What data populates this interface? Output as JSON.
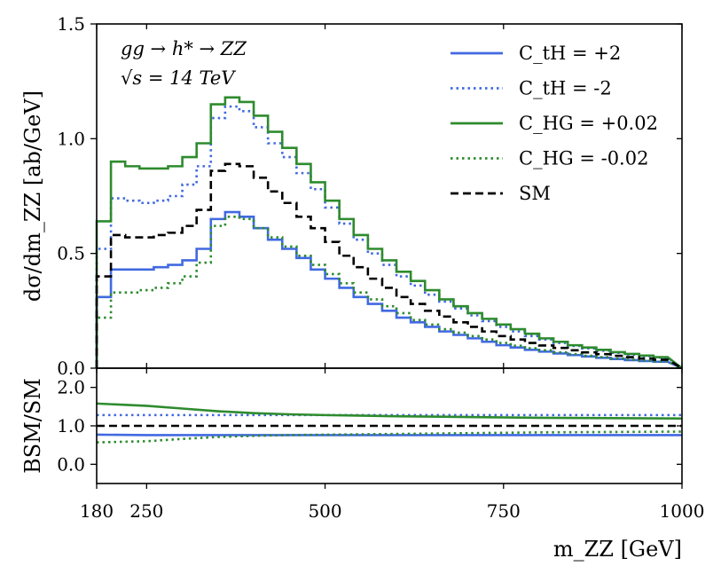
{
  "chart_data": [
    {
      "type": "line",
      "step": true,
      "panel": "main",
      "xlabel": "m_ZZ [GeV]",
      "ylabel": "dσ/dm_ZZ [ab/GeV]",
      "xlim": [
        180,
        1000
      ],
      "ylim": [
        0.0,
        1.5
      ],
      "xticks": [
        180,
        250,
        500,
        750,
        1000
      ],
      "yticks": [
        "0.0",
        "0.5",
        "1.0",
        "1.5"
      ],
      "annotations": [
        "gg → h* → ZZ",
        "√s = 14 TeV"
      ],
      "legend_position": "top-right",
      "bin_edges": [
        180,
        200,
        220,
        240,
        260,
        280,
        300,
        320,
        340,
        360,
        380,
        400,
        420,
        440,
        460,
        480,
        500,
        520,
        540,
        560,
        580,
        600,
        620,
        640,
        660,
        680,
        700,
        720,
        740,
        760,
        780,
        800,
        820,
        840,
        860,
        880,
        900,
        920,
        940,
        960,
        980,
        1000
      ],
      "series": [
        {
          "name": "C_tH = +2",
          "color": "#4169E1",
          "style": "solid",
          "values": [
            0.31,
            0.43,
            0.43,
            0.43,
            0.44,
            0.45,
            0.47,
            0.52,
            0.65,
            0.68,
            0.66,
            0.61,
            0.56,
            0.52,
            0.48,
            0.43,
            0.39,
            0.35,
            0.31,
            0.28,
            0.25,
            0.22,
            0.2,
            0.18,
            0.16,
            0.145,
            0.13,
            0.115,
            0.1,
            0.09,
            0.08,
            0.072,
            0.064,
            0.057,
            0.051,
            0.045,
            0.04,
            0.035,
            0.031,
            0.028
          ]
        },
        {
          "name": "C_tH = -2",
          "color": "#4169E1",
          "style": "dotted",
          "values": [
            0.52,
            0.74,
            0.73,
            0.72,
            0.73,
            0.75,
            0.8,
            0.88,
            1.09,
            1.14,
            1.12,
            1.05,
            0.98,
            0.92,
            0.85,
            0.78,
            0.7,
            0.63,
            0.56,
            0.5,
            0.45,
            0.4,
            0.36,
            0.32,
            0.29,
            0.26,
            0.23,
            0.205,
            0.18,
            0.16,
            0.14,
            0.125,
            0.11,
            0.097,
            0.086,
            0.076,
            0.067,
            0.059,
            0.052,
            0.046
          ]
        },
        {
          "name": "C_HG = +0.02",
          "color": "#2E8B2E",
          "style": "solid",
          "values": [
            0.64,
            0.9,
            0.88,
            0.87,
            0.87,
            0.88,
            0.92,
            0.98,
            1.15,
            1.18,
            1.16,
            1.1,
            1.03,
            0.96,
            0.89,
            0.81,
            0.73,
            0.65,
            0.58,
            0.52,
            0.47,
            0.42,
            0.38,
            0.34,
            0.3,
            0.27,
            0.24,
            0.215,
            0.19,
            0.17,
            0.15,
            0.13,
            0.115,
            0.1,
            0.09,
            0.08,
            0.07,
            0.062,
            0.055,
            0.048
          ]
        },
        {
          "name": "C_HG = -0.02",
          "color": "#2E8B2E",
          "style": "dotted",
          "values": [
            0.22,
            0.33,
            0.33,
            0.34,
            0.35,
            0.37,
            0.4,
            0.46,
            0.62,
            0.66,
            0.65,
            0.61,
            0.57,
            0.53,
            0.49,
            0.45,
            0.41,
            0.37,
            0.33,
            0.3,
            0.27,
            0.24,
            0.21,
            0.19,
            0.17,
            0.155,
            0.14,
            0.125,
            0.11,
            0.098,
            0.087,
            0.078,
            0.069,
            0.061,
            0.054,
            0.048,
            0.042,
            0.037,
            0.033,
            0.029
          ]
        },
        {
          "name": "SM",
          "color": "#000000",
          "style": "dashed",
          "values": [
            0.4,
            0.58,
            0.57,
            0.57,
            0.58,
            0.59,
            0.62,
            0.69,
            0.86,
            0.89,
            0.88,
            0.83,
            0.77,
            0.72,
            0.66,
            0.61,
            0.55,
            0.49,
            0.44,
            0.39,
            0.35,
            0.31,
            0.28,
            0.25,
            0.225,
            0.2,
            0.18,
            0.16,
            0.14,
            0.125,
            0.11,
            0.099,
            0.088,
            0.078,
            0.069,
            0.061,
            0.054,
            0.048,
            0.042,
            0.037
          ]
        }
      ]
    },
    {
      "type": "line",
      "panel": "ratio",
      "ylabel": "BSM/SM",
      "xlim": [
        180,
        1000
      ],
      "ylim": [
        -0.5,
        2.5
      ],
      "yticks": [
        "0.0",
        "1.0",
        "2.0"
      ],
      "x": [
        180,
        250,
        300,
        350,
        400,
        450,
        500,
        600,
        700,
        800,
        900,
        1000
      ],
      "series": [
        {
          "name": "C_tH = +2",
          "color": "#4169E1",
          "style": "solid",
          "values": [
            0.77,
            0.76,
            0.76,
            0.76,
            0.76,
            0.76,
            0.76,
            0.76,
            0.76,
            0.76,
            0.76,
            0.76
          ]
        },
        {
          "name": "C_tH = -2",
          "color": "#4169E1",
          "style": "dotted",
          "values": [
            1.28,
            1.28,
            1.28,
            1.28,
            1.28,
            1.28,
            1.28,
            1.28,
            1.28,
            1.28,
            1.28,
            1.28
          ]
        },
        {
          "name": "C_HG = +0.02",
          "color": "#2E8B2E",
          "style": "solid",
          "values": [
            1.58,
            1.52,
            1.45,
            1.38,
            1.33,
            1.3,
            1.28,
            1.25,
            1.23,
            1.21,
            1.2,
            1.19
          ]
        },
        {
          "name": "C_HG = -0.02",
          "color": "#2E8B2E",
          "style": "dotted",
          "values": [
            0.57,
            0.6,
            0.66,
            0.71,
            0.74,
            0.76,
            0.77,
            0.79,
            0.81,
            0.83,
            0.84,
            0.85
          ]
        },
        {
          "name": "SM",
          "color": "#000000",
          "style": "dashed",
          "values": [
            1,
            1,
            1,
            1,
            1,
            1,
            1,
            1,
            1,
            1,
            1,
            1
          ]
        }
      ]
    }
  ]
}
